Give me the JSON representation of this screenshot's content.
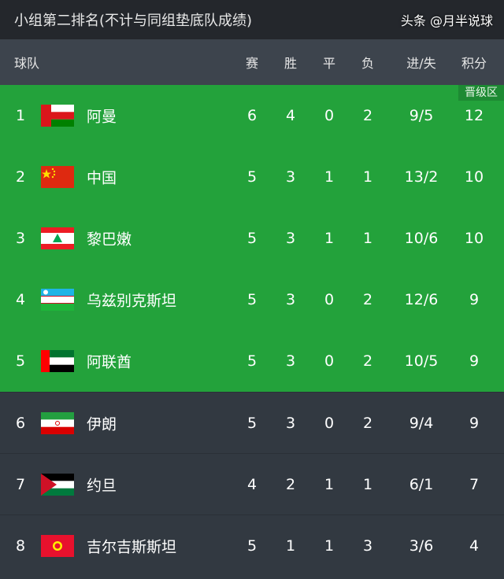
{
  "title": "小组第二排名(不计与同组垫底队成绩)",
  "columns": {
    "team": "球队",
    "played": "赛",
    "won": "胜",
    "drawn": "平",
    "lost": "负",
    "goals": "进/失",
    "points": "积分"
  },
  "promotion_badge": "晋级区",
  "colors": {
    "promotion": "#23a23b",
    "other": "#323941"
  },
  "rows": [
    {
      "rank": "1",
      "team": "阿曼",
      "flag": "oman",
      "played": "6",
      "won": "4",
      "drawn": "0",
      "lost": "2",
      "goals": "9/5",
      "points": "12"
    },
    {
      "rank": "2",
      "team": "中国",
      "flag": "china",
      "played": "5",
      "won": "3",
      "drawn": "1",
      "lost": "1",
      "goals": "13/2",
      "points": "10"
    },
    {
      "rank": "3",
      "team": "黎巴嫩",
      "flag": "lebanon",
      "played": "5",
      "won": "3",
      "drawn": "1",
      "lost": "1",
      "goals": "10/6",
      "points": "10"
    },
    {
      "rank": "4",
      "team": "乌兹别克斯坦",
      "flag": "uzbekistan",
      "played": "5",
      "won": "3",
      "drawn": "0",
      "lost": "2",
      "goals": "12/6",
      "points": "9"
    },
    {
      "rank": "5",
      "team": "阿联酋",
      "flag": "uae",
      "played": "5",
      "won": "3",
      "drawn": "0",
      "lost": "2",
      "goals": "10/5",
      "points": "9"
    },
    {
      "rank": "6",
      "team": "伊朗",
      "flag": "iran",
      "played": "5",
      "won": "3",
      "drawn": "0",
      "lost": "2",
      "goals": "9/4",
      "points": "9"
    },
    {
      "rank": "7",
      "team": "约旦",
      "flag": "jordan",
      "played": "4",
      "won": "2",
      "drawn": "1",
      "lost": "1",
      "goals": "6/1",
      "points": "7"
    },
    {
      "rank": "8",
      "team": "吉尔吉斯斯坦",
      "flag": "kyrgyzstan",
      "played": "5",
      "won": "1",
      "drawn": "1",
      "lost": "3",
      "goals": "3/6",
      "points": "4"
    }
  ],
  "watermark": "头条 @月半说球"
}
